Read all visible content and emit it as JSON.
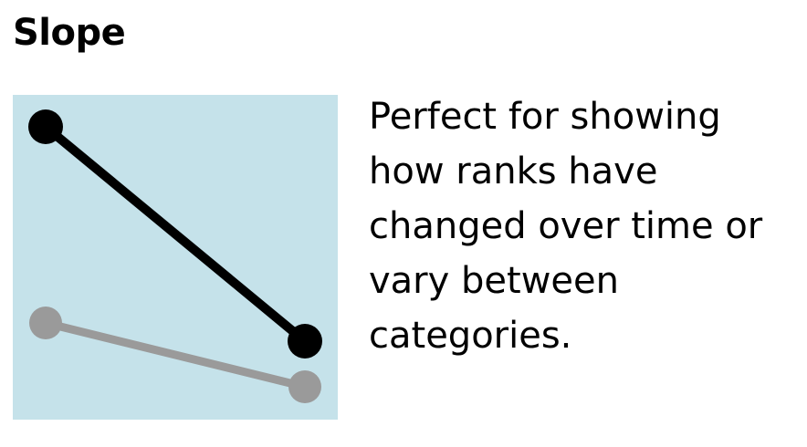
{
  "card": {
    "title": "Slope",
    "description": "Perfect for showing how ranks have changed over time or vary between categories."
  },
  "icon": {
    "name": "slope-chart-icon",
    "background_color": "#c5e2ea",
    "primary_color": "#000000",
    "secondary_color": "#9a9a9a"
  }
}
